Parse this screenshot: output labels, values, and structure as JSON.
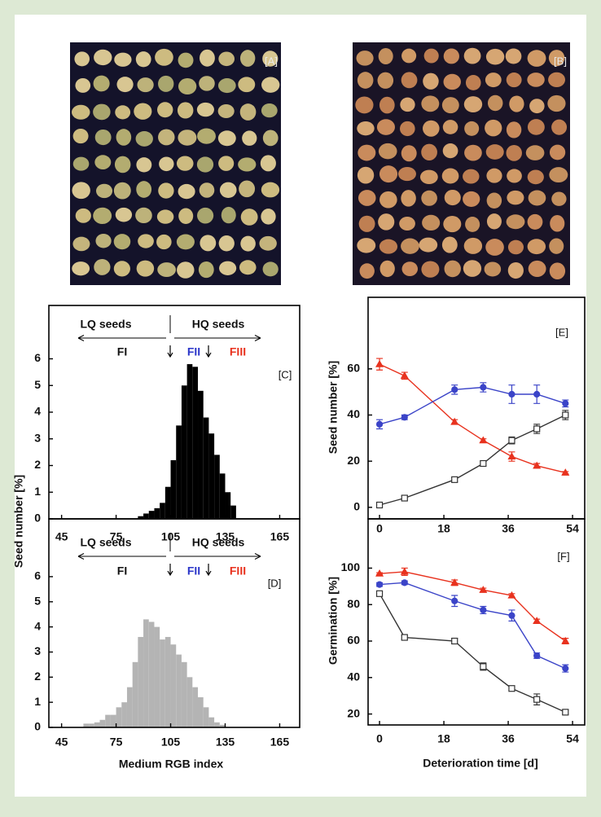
{
  "photos": {
    "A": {
      "label": "[A]"
    },
    "B": {
      "label": "[B]"
    }
  },
  "chart_data": [
    {
      "type": "histogram",
      "color": "#000000",
      "ylabel": "Seed number [%]",
      "bins": [
        87,
        90,
        93,
        96,
        99,
        102,
        105,
        108,
        111,
        114,
        117,
        120,
        123,
        126,
        129,
        132,
        135,
        138,
        141
      ],
      "values": [
        0.1,
        0.2,
        0.3,
        0.4,
        0.6,
        1.2,
        2.2,
        3.5,
        5.0,
        5.8,
        5.7,
        4.8,
        3.8,
        3.2,
        2.4,
        1.7,
        1.0,
        0.5
      ],
      "xlim": [
        38,
        176
      ],
      "xticks": [
        45,
        75,
        105,
        135,
        165
      ],
      "ylim": [
        0,
        8
      ],
      "yticks": [
        0,
        1,
        2,
        3,
        4,
        5,
        6
      ],
      "annotations": [
        {
          "text": "LQ seeds"
        },
        {
          "text": "HQ seeds"
        },
        {
          "text": "FI"
        },
        {
          "text": "FII",
          "color": "#2b36c9"
        },
        {
          "text": "FIII",
          "color": "#e8321e"
        },
        {
          "text": "[C]"
        }
      ]
    },
    {
      "type": "histogram",
      "color": "#b4b4b4",
      "xlabel": "Medium RGB index",
      "bins": [
        57,
        60,
        63,
        66,
        69,
        72,
        75,
        78,
        81,
        84,
        87,
        90,
        93,
        96,
        99,
        102,
        105,
        108,
        111,
        114,
        117,
        120,
        123,
        126,
        129,
        132,
        135
      ],
      "values": [
        0.15,
        0.15,
        0.2,
        0.3,
        0.5,
        0.5,
        0.8,
        1.0,
        1.6,
        2.6,
        3.6,
        4.3,
        4.2,
        4.0,
        3.5,
        3.6,
        3.3,
        2.9,
        2.6,
        2.0,
        1.6,
        1.2,
        0.8,
        0.4,
        0.2,
        0.1
      ],
      "xlim": [
        38,
        176
      ],
      "xticks": [
        45,
        75,
        105,
        135,
        165
      ],
      "ylim": [
        0,
        8.3
      ],
      "yticks": [
        0,
        1,
        2,
        3,
        4,
        5,
        6
      ],
      "annotations": [
        {
          "text": "LQ seeds"
        },
        {
          "text": "HQ seeds"
        },
        {
          "text": "FI"
        },
        {
          "text": "FII",
          "color": "#2b36c9"
        },
        {
          "text": "FIII",
          "color": "#e8321e"
        },
        {
          "text": "[D]"
        }
      ]
    },
    {
      "type": "line",
      "ylabel": "Seed number [%]",
      "x": [
        0,
        7,
        21,
        29,
        37,
        44,
        52
      ],
      "series": [
        {
          "color": "#e8321e",
          "marker": "triangle",
          "values": [
            62,
            57,
            37,
            29,
            22,
            18,
            15
          ],
          "errors": [
            2.5,
            1.5,
            1,
            0.7,
            2,
            1,
            0.5
          ]
        },
        {
          "color": "#3b44c8",
          "marker": "circle",
          "values": [
            36,
            39,
            51,
            52,
            49,
            49,
            45
          ],
          "errors": [
            2,
            1,
            2,
            2,
            4,
            4,
            1.5
          ]
        },
        {
          "color": "#333333",
          "marker": "square",
          "values": [
            1,
            4,
            12,
            19,
            29,
            34,
            40
          ],
          "errors": [
            0.5,
            1,
            0.8,
            1,
            1.5,
            2,
            2
          ]
        }
      ],
      "xlim": [
        -3.2,
        57.4
      ],
      "xticks": [
        0,
        18,
        36,
        54
      ],
      "ylim": [
        -5,
        91
      ],
      "yticks": [
        0,
        20,
        40,
        60
      ],
      "annotations": [
        {
          "text": "[E]"
        }
      ]
    },
    {
      "type": "line",
      "ylabel": "Germination [%]",
      "xlabel": "Deterioration time [d]",
      "x": [
        0,
        7,
        21,
        29,
        37,
        44,
        52
      ],
      "series": [
        {
          "color": "#e8321e",
          "marker": "triangle",
          "values": [
            97,
            98,
            92,
            88,
            85,
            71,
            60
          ],
          "errors": [
            0.5,
            2,
            1.5,
            1,
            1,
            1,
            1.5
          ]
        },
        {
          "color": "#3b44c8",
          "marker": "circle",
          "values": [
            91,
            92,
            82,
            77,
            74,
            52,
            45
          ],
          "errors": [
            1,
            1,
            3,
            2,
            3,
            1.5,
            2
          ]
        },
        {
          "color": "#333333",
          "marker": "square",
          "values": [
            86,
            62,
            60,
            46,
            34,
            28,
            21
          ],
          "errors": [
            1,
            1,
            1.5,
            2,
            1,
            3,
            1
          ]
        }
      ],
      "xlim": [
        -3.2,
        57.4
      ],
      "xticks": [
        0,
        18,
        36,
        54
      ],
      "ylim": [
        14,
        127
      ],
      "yticks": [
        20,
        40,
        60,
        80,
        100
      ],
      "annotations": [
        {
          "text": "[F]"
        }
      ]
    }
  ]
}
